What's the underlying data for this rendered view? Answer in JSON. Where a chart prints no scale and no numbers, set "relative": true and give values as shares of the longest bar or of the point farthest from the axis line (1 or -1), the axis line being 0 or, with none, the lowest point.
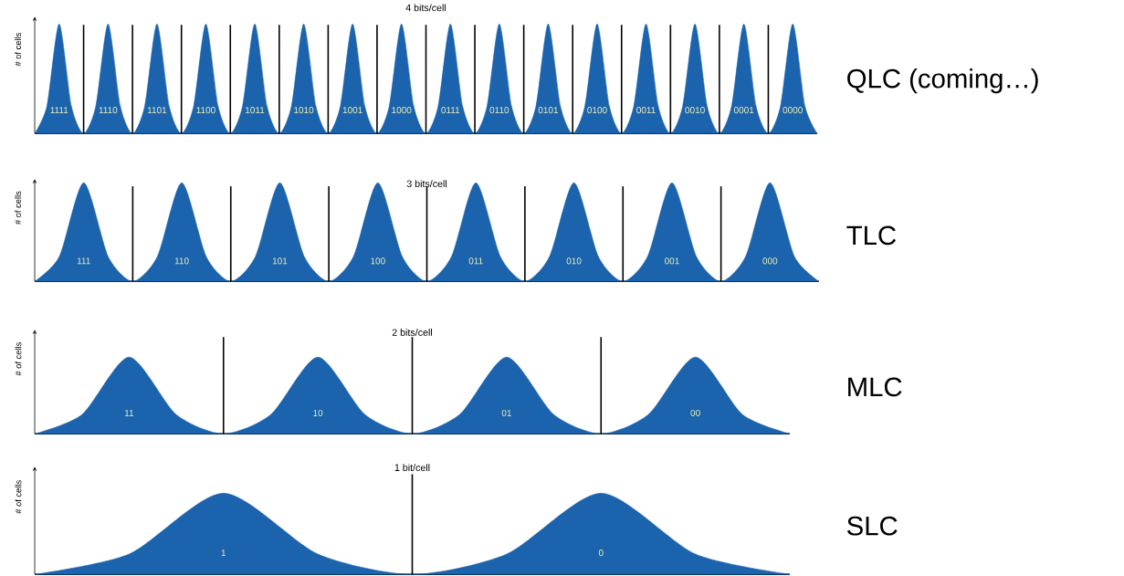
{
  "chart_data": [
    {
      "type": "area",
      "relative": true,
      "grid": "x",
      "title": "4 bits/cell",
      "ylabel": "# of cells",
      "color": "#1b63ad",
      "categories": [
        null,
        null,
        "1111",
        null,
        null,
        null,
        "1110",
        null,
        null,
        null,
        "1101",
        null,
        null,
        null,
        "1100",
        null,
        null,
        null,
        "1011",
        null,
        null,
        null,
        "1010",
        null,
        null,
        null,
        "1001",
        null,
        null,
        null,
        "1000",
        null,
        null,
        null,
        "0111",
        null,
        null,
        null,
        "0110",
        null,
        null,
        null,
        "0101",
        null,
        null,
        null,
        "0100",
        null,
        null,
        null,
        "0011",
        null,
        null,
        null,
        "0010",
        null,
        null,
        null,
        "0001",
        null,
        null,
        null,
        "0000",
        null,
        null
      ],
      "values": [
        0,
        0.25,
        1,
        0.25,
        0,
        0.25,
        1,
        0.25,
        0,
        0.25,
        1,
        0.25,
        0,
        0.25,
        1,
        0.25,
        0,
        0.25,
        1,
        0.25,
        0,
        0.25,
        1,
        0.25,
        0,
        0.25,
        1,
        0.25,
        0,
        0.25,
        1,
        0.25,
        0,
        0.25,
        1,
        0.25,
        0,
        0.25,
        1,
        0.25,
        0,
        0.25,
        1,
        0.25,
        0,
        0.25,
        1,
        0.25,
        0,
        0.25,
        1,
        0.25,
        0,
        0.25,
        1,
        0.25,
        0,
        0.25,
        1,
        0.25,
        0,
        0.25,
        1,
        0.25,
        0
      ],
      "annotations": [
        "QLC (coming…)"
      ]
    },
    {
      "type": "area",
      "relative": true,
      "grid": "x",
      "title": "3 bits/cell",
      "ylabel": "# of cells",
      "color": "#1b63ad",
      "categories": [
        null,
        null,
        "111",
        null,
        null,
        null,
        "110",
        null,
        null,
        null,
        "101",
        null,
        null,
        null,
        "100",
        null,
        null,
        null,
        "011",
        null,
        null,
        null,
        "010",
        null,
        null,
        null,
        "001",
        null,
        null,
        null,
        "000",
        null,
        null
      ],
      "values": [
        0,
        0.25,
        1,
        0.25,
        0,
        0.25,
        1,
        0.25,
        0,
        0.25,
        1,
        0.25,
        0,
        0.25,
        1,
        0.25,
        0,
        0.25,
        1,
        0.25,
        0,
        0.25,
        1,
        0.25,
        0,
        0.25,
        1,
        0.25,
        0,
        0.25,
        1,
        0.25,
        0
      ],
      "annotations": [
        "TLC"
      ]
    },
    {
      "type": "area",
      "relative": true,
      "grid": "x",
      "title": "2 bits/cell",
      "ylabel": "# of cells",
      "color": "#1b63ad",
      "categories": [
        null,
        null,
        "11",
        null,
        null,
        null,
        "10",
        null,
        null,
        null,
        "01",
        null,
        null,
        null,
        "00",
        null,
        null
      ],
      "values": [
        0,
        0.25,
        1,
        0.25,
        0,
        0.25,
        1,
        0.25,
        0,
        0.25,
        1,
        0.25,
        0,
        0.25,
        1,
        0.25,
        0
      ],
      "annotations": [
        "MLC"
      ]
    },
    {
      "type": "area",
      "relative": true,
      "grid": "x",
      "title": "1 bit/cell",
      "ylabel": "# of cells",
      "color": "#1b63ad",
      "categories": [
        null,
        null,
        "1",
        null,
        null,
        null,
        "0",
        null,
        null
      ],
      "values": [
        0,
        0.25,
        1,
        0.25,
        0,
        0.25,
        1,
        0.25,
        0
      ],
      "annotations": [
        "SLC"
      ]
    }
  ]
}
